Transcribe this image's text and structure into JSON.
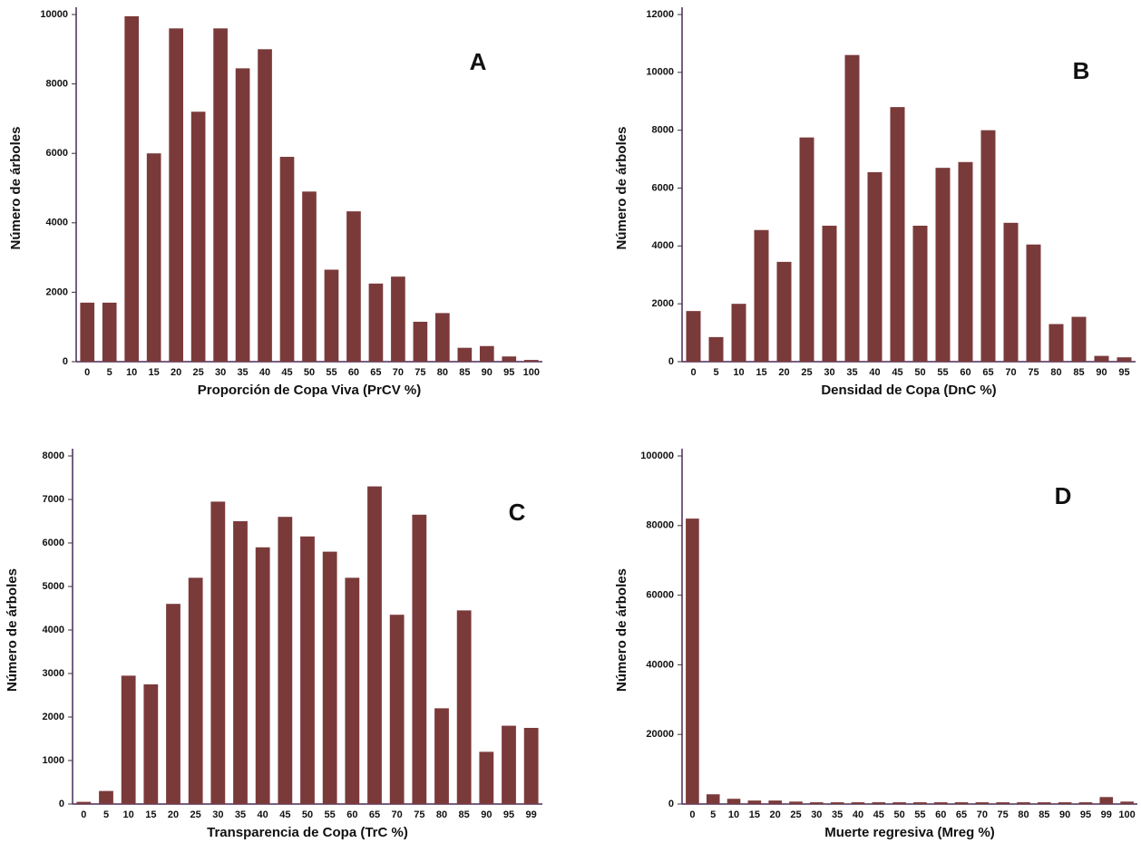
{
  "chart_data": [
    {
      "type": "bar",
      "annotation": "A",
      "xlabel": "Proporción de Copa Viva  (PrCV %)",
      "ylabel": "Número de árboles",
      "color": "#7b3a3a",
      "categories": [
        "0",
        "5",
        "10",
        "15",
        "20",
        "25",
        "30",
        "35",
        "40",
        "45",
        "50",
        "55",
        "60",
        "65",
        "70",
        "75",
        "80",
        "85",
        "90",
        "95",
        "100"
      ],
      "values": [
        1700,
        1700,
        9950,
        6000,
        9600,
        7200,
        9600,
        8450,
        9000,
        5900,
        4900,
        2650,
        4330,
        2250,
        2450,
        1150,
        1400,
        400,
        450,
        150,
        50
      ],
      "ylim": [
        0,
        10000
      ],
      "yticks": [
        0,
        2000,
        4000,
        6000,
        8000,
        10000
      ]
    },
    {
      "type": "bar",
      "annotation": "B",
      "xlabel": "Densidad de Copa  (DnC %)",
      "ylabel": "Número de árboles",
      "color": "#7b3a3a",
      "categories": [
        "0",
        "5",
        "10",
        "15",
        "20",
        "25",
        "30",
        "35",
        "40",
        "45",
        "50",
        "55",
        "60",
        "65",
        "70",
        "75",
        "80",
        "85",
        "90",
        "95"
      ],
      "values": [
        1750,
        850,
        2000,
        4550,
        3450,
        7750,
        4700,
        10600,
        6550,
        8800,
        4700,
        6700,
        6900,
        8000,
        4800,
        4050,
        1300,
        1550,
        200,
        150
      ],
      "ylim": [
        0,
        12000
      ],
      "yticks": [
        0,
        2000,
        4000,
        6000,
        8000,
        10000,
        12000
      ]
    },
    {
      "type": "bar",
      "annotation": "C",
      "xlabel": "Transparencia de Copa  (TrC %)",
      "ylabel": "Número de árboles",
      "color": "#7b3a3a",
      "categories": [
        "0",
        "5",
        "10",
        "15",
        "20",
        "25",
        "30",
        "35",
        "40",
        "45",
        "50",
        "55",
        "60",
        "65",
        "70",
        "75",
        "80",
        "85",
        "90",
        "95",
        "99"
      ],
      "values": [
        50,
        300,
        2950,
        2750,
        4600,
        5200,
        6950,
        6500,
        5900,
        6600,
        6150,
        5800,
        5200,
        7300,
        4350,
        6650,
        2200,
        4450,
        1200,
        1800,
        1750
      ],
      "ylim": [
        0,
        8000
      ],
      "yticks": [
        0,
        1000,
        2000,
        3000,
        4000,
        5000,
        6000,
        7000,
        8000
      ]
    },
    {
      "type": "bar",
      "annotation": "D",
      "xlabel": "Muerte regresiva  (Mreg %)",
      "ylabel": "Número de árboles",
      "color": "#7b3a3a",
      "categories": [
        "0",
        "5",
        "10",
        "15",
        "20",
        "25",
        "30",
        "35",
        "40",
        "45",
        "50",
        "55",
        "60",
        "65",
        "70",
        "75",
        "80",
        "85",
        "90",
        "95",
        "99",
        "100"
      ],
      "values": [
        82000,
        2800,
        1500,
        1000,
        1000,
        700,
        500,
        500,
        500,
        500,
        500,
        500,
        500,
        500,
        500,
        500,
        500,
        500,
        500,
        500,
        2000,
        700
      ],
      "ylim": [
        0,
        100000
      ],
      "yticks": [
        0,
        20000,
        40000,
        60000,
        80000,
        100000
      ]
    }
  ]
}
